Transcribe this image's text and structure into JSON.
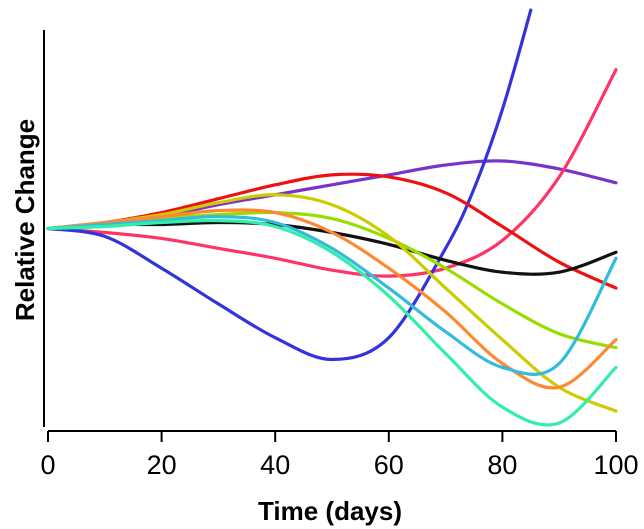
{
  "chart_data": {
    "type": "line",
    "title": "",
    "xlabel": "Time (days)",
    "ylabel": "Relative Change",
    "xlim": [
      0,
      100
    ],
    "ylim": [
      -1,
      1
    ],
    "x_ticks": [
      "0",
      "20",
      "40",
      "60",
      "80",
      "100"
    ],
    "y_ticks_labeled": false,
    "grid": false,
    "legend": "none",
    "series": [
      {
        "color": "#7733cc",
        "points": [
          [
            0,
            0
          ],
          [
            10,
            0.02
          ],
          [
            20,
            0.06
          ],
          [
            30,
            0.12
          ],
          [
            40,
            0.17
          ],
          [
            50,
            0.22
          ],
          [
            60,
            0.27
          ],
          [
            70,
            0.32
          ],
          [
            80,
            0.34
          ],
          [
            90,
            0.3
          ],
          [
            100,
            0.23
          ]
        ]
      },
      {
        "color": "#ff3366",
        "points": [
          [
            0,
            0
          ],
          [
            10,
            -0.02
          ],
          [
            20,
            -0.05
          ],
          [
            30,
            -0.1
          ],
          [
            40,
            -0.15
          ],
          [
            50,
            -0.21
          ],
          [
            60,
            -0.24
          ],
          [
            70,
            -0.2
          ],
          [
            80,
            -0.06
          ],
          [
            90,
            0.26
          ],
          [
            100,
            0.8
          ]
        ]
      },
      {
        "color": "#3333dd",
        "points": [
          [
            0,
            0
          ],
          [
            10,
            -0.04
          ],
          [
            20,
            -0.2
          ],
          [
            30,
            -0.38
          ],
          [
            40,
            -0.55
          ],
          [
            50,
            -0.66
          ],
          [
            60,
            -0.55
          ],
          [
            70,
            -0.1
          ],
          [
            75,
            0.2
          ],
          [
            80,
            0.6
          ],
          [
            85,
            1.1
          ]
        ]
      },
      {
        "color": "#ee1111",
        "points": [
          [
            0,
            0
          ],
          [
            10,
            0.03
          ],
          [
            20,
            0.08
          ],
          [
            30,
            0.15
          ],
          [
            40,
            0.22
          ],
          [
            50,
            0.27
          ],
          [
            60,
            0.26
          ],
          [
            70,
            0.18
          ],
          [
            80,
            0.01
          ],
          [
            90,
            -0.17
          ],
          [
            100,
            -0.3
          ]
        ]
      },
      {
        "color": "#111111",
        "points": [
          [
            0,
            0
          ],
          [
            10,
            0.02
          ],
          [
            20,
            0.02
          ],
          [
            30,
            0.03
          ],
          [
            40,
            0.02
          ],
          [
            50,
            -0.02
          ],
          [
            60,
            -0.08
          ],
          [
            70,
            -0.16
          ],
          [
            80,
            -0.22
          ],
          [
            90,
            -0.22
          ],
          [
            100,
            -0.12
          ]
        ]
      },
      {
        "color": "#99dd00",
        "points": [
          [
            0,
            0
          ],
          [
            10,
            0.02
          ],
          [
            20,
            0.05
          ],
          [
            30,
            0.07
          ],
          [
            40,
            0.08
          ],
          [
            50,
            0.05
          ],
          [
            60,
            -0.05
          ],
          [
            70,
            -0.2
          ],
          [
            80,
            -0.38
          ],
          [
            90,
            -0.53
          ],
          [
            100,
            -0.6
          ]
        ]
      },
      {
        "color": "#cccc00",
        "points": [
          [
            0,
            0
          ],
          [
            10,
            0.03
          ],
          [
            20,
            0.07
          ],
          [
            30,
            0.13
          ],
          [
            40,
            0.17
          ],
          [
            50,
            0.12
          ],
          [
            60,
            -0.04
          ],
          [
            70,
            -0.3
          ],
          [
            80,
            -0.56
          ],
          [
            90,
            -0.8
          ],
          [
            100,
            -0.92
          ]
        ]
      },
      {
        "color": "#ff8833",
        "points": [
          [
            0,
            0
          ],
          [
            10,
            0.03
          ],
          [
            20,
            0.06
          ],
          [
            30,
            0.09
          ],
          [
            40,
            0.08
          ],
          [
            50,
            -0.02
          ],
          [
            60,
            -0.2
          ],
          [
            70,
            -0.42
          ],
          [
            80,
            -0.68
          ],
          [
            90,
            -0.8
          ],
          [
            100,
            -0.56
          ]
        ]
      },
      {
        "color": "#33bbdd",
        "points": [
          [
            0,
            0
          ],
          [
            10,
            0.02
          ],
          [
            20,
            0.04
          ],
          [
            30,
            0.06
          ],
          [
            40,
            0.03
          ],
          [
            50,
            -0.1
          ],
          [
            60,
            -0.3
          ],
          [
            70,
            -0.52
          ],
          [
            80,
            -0.7
          ],
          [
            90,
            -0.68
          ],
          [
            100,
            -0.15
          ]
        ]
      },
      {
        "color": "#33eeaa",
        "points": [
          [
            0,
            0
          ],
          [
            10,
            0.01
          ],
          [
            20,
            0.03
          ],
          [
            30,
            0.04
          ],
          [
            40,
            0.01
          ],
          [
            50,
            -0.12
          ],
          [
            60,
            -0.34
          ],
          [
            70,
            -0.63
          ],
          [
            80,
            -0.9
          ],
          [
            90,
            -0.98
          ],
          [
            100,
            -0.7
          ]
        ]
      }
    ]
  }
}
